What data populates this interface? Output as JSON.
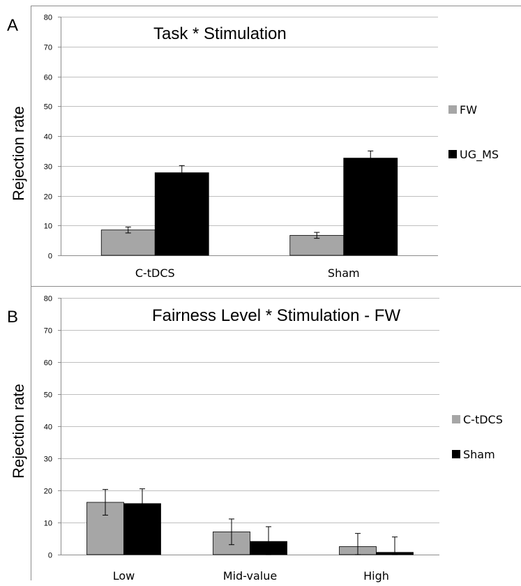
{
  "colors": {
    "series_gray": "#a6a6a6",
    "series_black": "#000000",
    "grid": "#bfbfbf",
    "frame": "#8c8c8c"
  },
  "chart_data": [
    {
      "panel": "A",
      "type": "bar",
      "title": "Task * Stimulation",
      "xlabel": "",
      "ylabel": "Rejection rate",
      "ylim": [
        0,
        80
      ],
      "yticks": [
        0,
        10,
        20,
        30,
        40,
        50,
        60,
        70,
        80
      ],
      "grid": true,
      "legend": "right",
      "categories": [
        "C-tDCS",
        "Sham"
      ],
      "series": [
        {
          "name": "FW",
          "values": [
            8.5,
            6.7
          ],
          "errors": [
            1.0,
            1.0
          ]
        },
        {
          "name": "UG_MS",
          "values": [
            27.7,
            32.6
          ],
          "errors": [
            2.4,
            2.4
          ]
        }
      ]
    },
    {
      "panel": "B",
      "type": "bar",
      "title": "Fairness Level * Stimulation - FW",
      "xlabel": "",
      "ylabel": "Rejection rate",
      "ylim": [
        0,
        80
      ],
      "yticks": [
        0,
        10,
        20,
        30,
        40,
        50,
        60,
        70,
        80
      ],
      "grid": true,
      "legend": "right",
      "categories": [
        "Low",
        "Mid-value",
        "High"
      ],
      "series": [
        {
          "name": "C-tDCS",
          "values": [
            16.3,
            7.1,
            2.5
          ],
          "errors": [
            4.0,
            4.0,
            4.1
          ]
        },
        {
          "name": "Sham",
          "values": [
            15.9,
            4.1,
            0.7
          ],
          "errors": [
            4.6,
            4.6,
            4.8
          ]
        }
      ]
    }
  ]
}
